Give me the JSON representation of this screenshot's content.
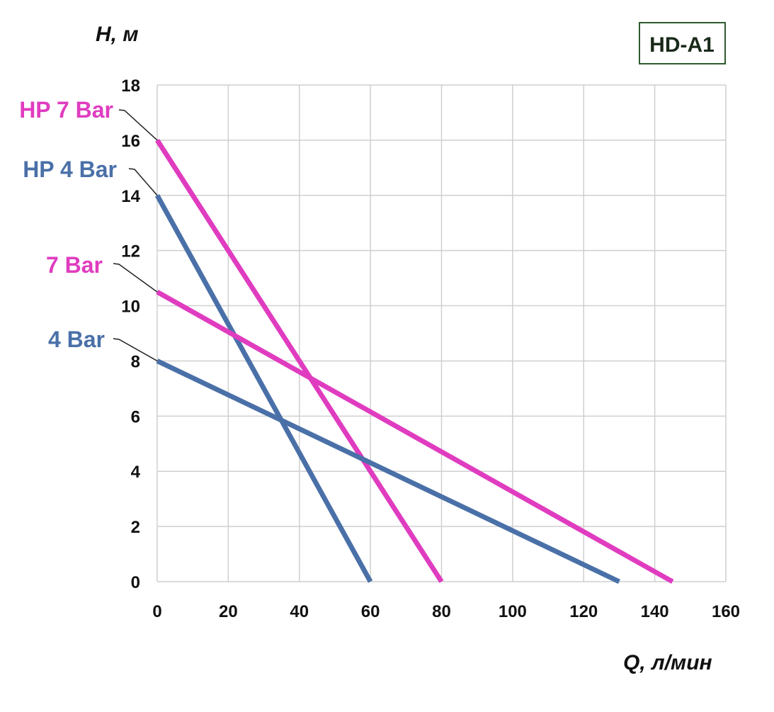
{
  "chart_data": {
    "type": "line",
    "title": "",
    "badge": "HD-A1",
    "xlabel": "Q, л/мин",
    "ylabel": "H, м",
    "xlim": [
      0,
      160
    ],
    "ylim": [
      0,
      18
    ],
    "xticks": [
      0,
      20,
      40,
      60,
      80,
      100,
      120,
      140,
      160
    ],
    "yticks": [
      0,
      2,
      4,
      6,
      8,
      10,
      12,
      14,
      16,
      18
    ],
    "grid": true,
    "series": [
      {
        "name": "HP 7 Bar",
        "color": "#e03cc0",
        "x": [
          0,
          80
        ],
        "y": [
          16,
          0
        ]
      },
      {
        "name": "HP 4 Bar",
        "color": "#4a70a8",
        "x": [
          0,
          60
        ],
        "y": [
          14,
          0
        ]
      },
      {
        "name": "7 Bar",
        "color": "#e03cc0",
        "x": [
          0,
          145
        ],
        "y": [
          10.5,
          0
        ]
      },
      {
        "name": "4 Bar",
        "color": "#4a70a8",
        "x": [
          0,
          130
        ],
        "y": [
          8,
          0
        ]
      }
    ],
    "badge_border_color": "#2f5a2f"
  }
}
